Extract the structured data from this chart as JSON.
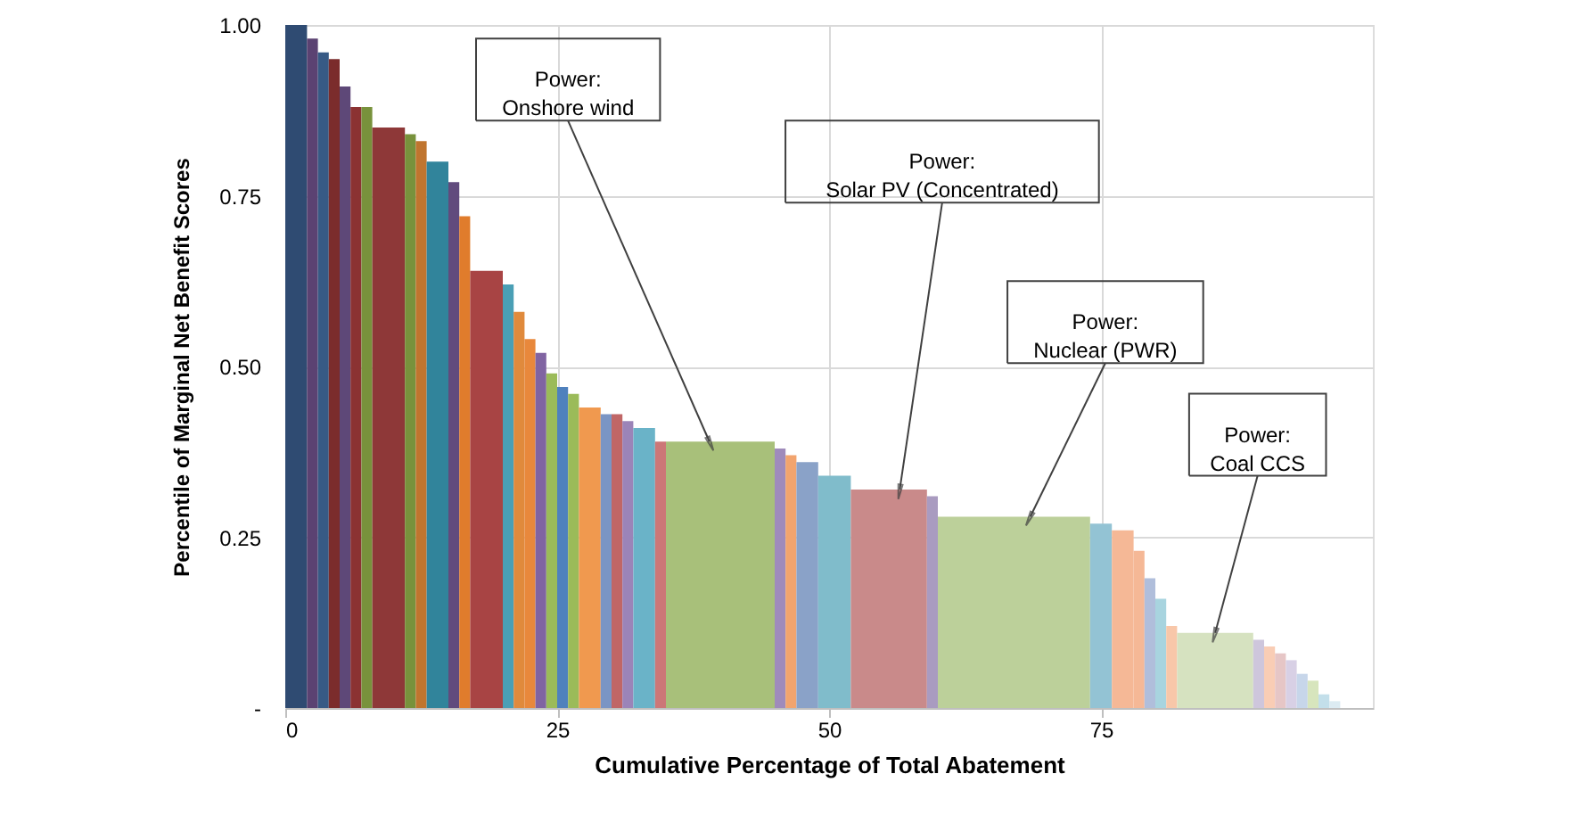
{
  "chart_data": {
    "type": "histogram",
    "xlabel": "Cumulative Percentage of Total Abatement",
    "ylabel": "Percentile of Marginal Net Benefit Scores",
    "bins": [
      0,
      2,
      3,
      4,
      5,
      6,
      7,
      8,
      11,
      12,
      13,
      15,
      16,
      17,
      20,
      21,
      22,
      23,
      24,
      25,
      26,
      27,
      29,
      30,
      31,
      32,
      34,
      35,
      45,
      46,
      47,
      49,
      52,
      59,
      60,
      74,
      76,
      78,
      79,
      80,
      81,
      82,
      89,
      90,
      91,
      92,
      93,
      94,
      95,
      96,
      97
    ],
    "values": [
      1.0,
      0.98,
      0.96,
      0.95,
      0.91,
      0.88,
      0.88,
      0.85,
      0.84,
      0.83,
      0.8,
      0.77,
      0.72,
      0.64,
      0.62,
      0.58,
      0.54,
      0.52,
      0.49,
      0.47,
      0.46,
      0.44,
      0.43,
      0.43,
      0.42,
      0.41,
      0.39,
      0.39,
      0.38,
      0.37,
      0.36,
      0.34,
      0.32,
      0.31,
      0.28,
      0.27,
      0.26,
      0.23,
      0.19,
      0.16,
      0.12,
      0.11,
      0.1,
      0.09,
      0.08,
      0.07,
      0.05,
      0.04,
      0.02,
      0.01
    ],
    "colors": [
      "#2f4b72",
      "#5b4272",
      "#375a85",
      "#7b2c2c",
      "#5e4878",
      "#8b3232",
      "#78923c",
      "#8e3838",
      "#78923c",
      "#c0752f",
      "#31849b",
      "#614b7d",
      "#e07c2c",
      "#a84444",
      "#4a9fb5",
      "#e08a3c",
      "#e8883c",
      "#8064a2",
      "#9bbb59",
      "#4f81bd",
      "#9bbb59",
      "#f0994f",
      "#7a95c4",
      "#c06666",
      "#9b84b8",
      "#6ab3c8",
      "#cc7777",
      "#a8c07a",
      "#9f8bbb",
      "#f2a46e",
      "#8aa2c8",
      "#80bccb",
      "#c98a8a",
      "#a99bc0",
      "#bcd09a",
      "#93c3d4",
      "#f5b896",
      "#f5b896",
      "#b0bedb",
      "#a8d4df",
      "#f8c7a9",
      "#d6e2c0",
      "#cec6dc",
      "#f9cdb5",
      "#e6c6c6",
      "#d8d0e5",
      "#c7d6ea",
      "#d7e5bd",
      "#c3dfea",
      "#dcebf2"
    ],
    "xlim": [
      0,
      100
    ],
    "xticks": [
      0,
      25,
      50,
      75
    ],
    "ylim": [
      0,
      1
    ],
    "yticks": [
      {
        "value": 0,
        "label": "-"
      },
      {
        "value": 0.25,
        "label": "0.25"
      },
      {
        "value": 0.5,
        "label": "0.50"
      },
      {
        "value": 0.75,
        "label": "0.75"
      },
      {
        "value": 1,
        "label": "1.00"
      }
    ],
    "grid": true,
    "annotations": [
      {
        "text": "Power:\nOnshore wind",
        "x": 39,
        "y": 0.39
      },
      {
        "text": "Power:\nSolar PV (Concentrated)",
        "x": 56.5,
        "y": 0.32
      },
      {
        "text": "Power:\nNuclear (PWR)",
        "x": 68.5,
        "y": 0.28
      },
      {
        "text": "Power:\nCoal CCS",
        "x": 85.5,
        "y": 0.11
      }
    ]
  }
}
